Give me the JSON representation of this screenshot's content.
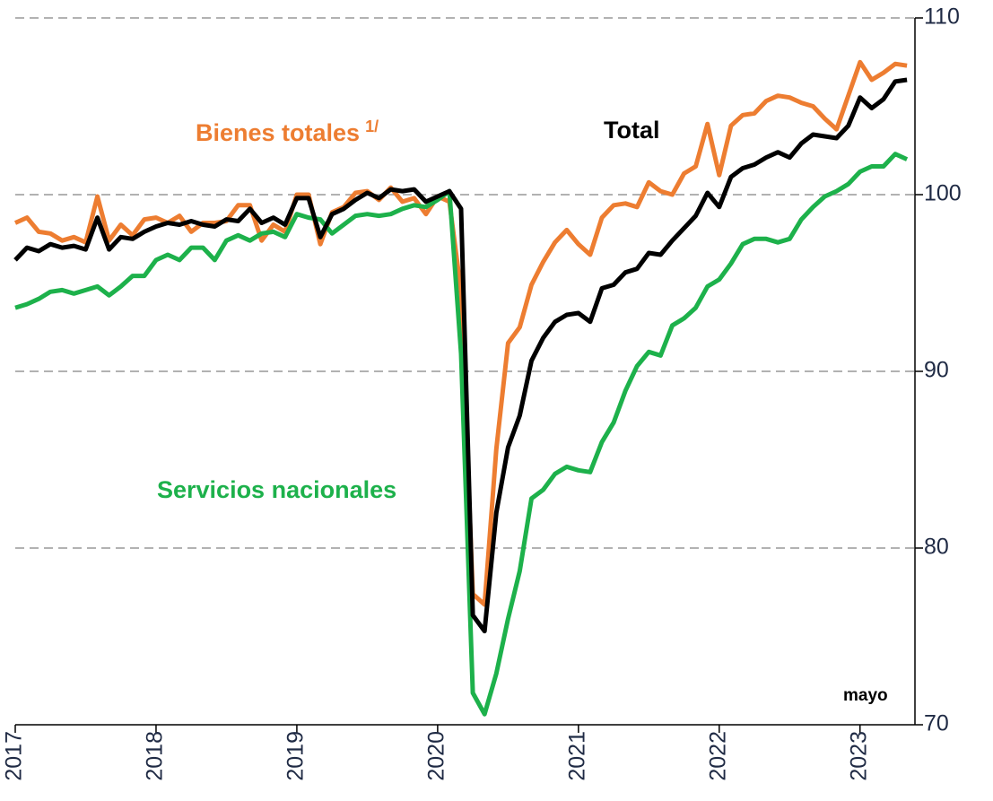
{
  "chart_data": {
    "type": "line",
    "categories": [
      "2017",
      null,
      null,
      null,
      null,
      null,
      null,
      null,
      null,
      null,
      null,
      null,
      "2018",
      null,
      null,
      null,
      null,
      null,
      null,
      null,
      null,
      null,
      null,
      null,
      "2019",
      null,
      null,
      null,
      null,
      null,
      null,
      null,
      null,
      null,
      null,
      null,
      "2020",
      null,
      null,
      null,
      null,
      null,
      null,
      null,
      null,
      null,
      null,
      null,
      "2021",
      null,
      null,
      null,
      null,
      null,
      null,
      null,
      null,
      null,
      null,
      null,
      "2022",
      null,
      null,
      null,
      null,
      null,
      null,
      null,
      null,
      null,
      null,
      null,
      "2023",
      null,
      null,
      null,
      null
    ],
    "ylim": [
      70,
      110
    ],
    "yticks": [
      70,
      80,
      90,
      100,
      110
    ],
    "grid": true,
    "annotation": "mayo",
    "series": [
      {
        "name": "Bienes totales",
        "footnote": "1/",
        "color": "#ED7D31",
        "values": [
          98.4,
          98.7,
          97.9,
          97.8,
          97.4,
          97.6,
          97.3,
          99.9,
          97.4,
          98.3,
          97.7,
          98.6,
          98.7,
          98.4,
          98.8,
          97.9,
          98.4,
          98.4,
          98.5,
          99.4,
          99.4,
          97.4,
          98.3,
          97.9,
          100.0,
          100.0,
          97.2,
          99.0,
          99.3,
          100.1,
          100.2,
          99.7,
          100.4,
          99.6,
          99.8,
          98.9,
          99.9,
          99.6,
          94.5,
          77.4,
          76.8,
          85.6,
          91.6,
          92.5,
          94.9,
          96.2,
          97.3,
          98.0,
          97.2,
          96.6,
          98.7,
          99.4,
          99.5,
          99.3,
          100.7,
          100.2,
          100.0,
          101.2,
          101.6,
          104.0,
          101.1,
          103.9,
          104.5,
          104.6,
          105.3,
          105.6,
          105.5,
          105.2,
          105.0,
          104.3,
          103.7,
          105.6,
          107.5,
          106.5,
          106.9,
          107.4,
          107.3
        ]
      },
      {
        "name": "Servicios nacionales",
        "color": "#1DB14B",
        "values": [
          93.6,
          93.8,
          94.1,
          94.5,
          94.6,
          94.4,
          94.6,
          94.8,
          94.3,
          94.8,
          95.4,
          95.4,
          96.3,
          96.6,
          96.3,
          97.0,
          97.0,
          96.3,
          97.4,
          97.7,
          97.4,
          97.8,
          97.9,
          97.6,
          98.9,
          98.7,
          98.6,
          97.8,
          98.3,
          98.8,
          98.9,
          98.8,
          98.9,
          99.2,
          99.4,
          99.3,
          99.7,
          100.2,
          91.0,
          71.8,
          70.6,
          72.9,
          76.0,
          78.7,
          82.8,
          83.3,
          84.2,
          84.6,
          84.4,
          84.3,
          86.0,
          87.1,
          88.9,
          90.3,
          91.1,
          90.9,
          92.6,
          93.0,
          93.6,
          94.8,
          95.2,
          96.1,
          97.2,
          97.5,
          97.5,
          97.3,
          97.5,
          98.6,
          99.3,
          99.9,
          100.2,
          100.6,
          101.3,
          101.6,
          101.6,
          102.3,
          102.0
        ]
      },
      {
        "name": "Total",
        "color": "#000000",
        "values": [
          96.3,
          97.0,
          96.8,
          97.2,
          97.0,
          97.1,
          96.9,
          98.7,
          96.9,
          97.6,
          97.5,
          97.9,
          98.2,
          98.4,
          98.3,
          98.5,
          98.3,
          98.2,
          98.6,
          98.5,
          99.2,
          98.4,
          98.7,
          98.3,
          99.8,
          99.8,
          97.6,
          98.9,
          99.2,
          99.7,
          100.1,
          99.8,
          100.3,
          100.2,
          100.3,
          99.6,
          99.9,
          100.2,
          99.2,
          76.2,
          75.3,
          82.0,
          85.7,
          87.5,
          90.6,
          91.9,
          92.8,
          93.2,
          93.3,
          92.8,
          94.7,
          94.9,
          95.6,
          95.8,
          96.7,
          96.6,
          97.4,
          98.1,
          98.8,
          100.1,
          99.3,
          101.0,
          101.5,
          101.7,
          102.1,
          102.4,
          102.1,
          102.9,
          103.4,
          103.3,
          103.2,
          103.9,
          105.5,
          104.9,
          105.4,
          106.4,
          106.5
        ]
      }
    ]
  }
}
